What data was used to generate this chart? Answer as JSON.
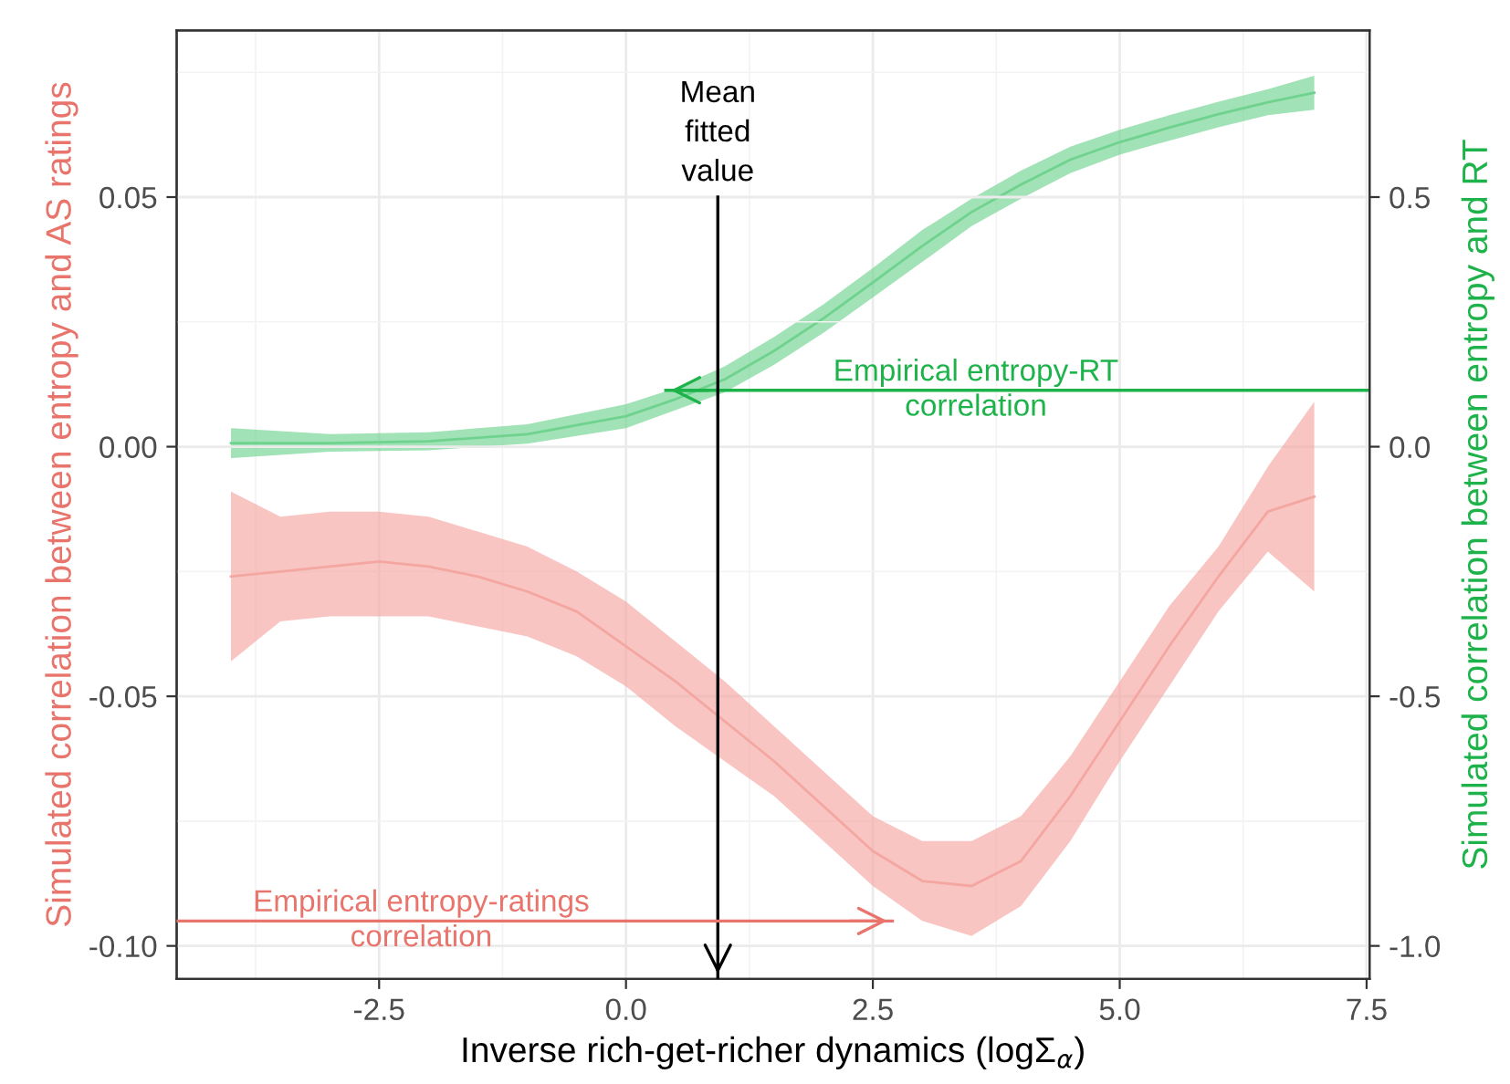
{
  "chart_data": {
    "type": "line",
    "xlabel": "Inverse rich-get-richer dynamics (logΣ$_{α}$)",
    "ylabel": "Simulated correlation between entropy and AS ratings",
    "y2label": "Simulated correlation between entropy and RT",
    "xlim": [
      -4.55,
      7.53
    ],
    "xticks": [
      -2.5,
      {
        "value": 0,
        "label": "0.0"
      },
      2.5,
      {
        "value": 5,
        "label": "5.0"
      },
      7.5
    ],
    "ylim": [
      -0.1066,
      0.0834
    ],
    "yticks": [
      {
        "value": -0.1,
        "label": "-0.10"
      },
      -0.05,
      {
        "value": 0,
        "label": "0.00"
      },
      0.05
    ],
    "y2lim": [
      -1.066,
      0.834
    ],
    "y2ticks": [
      {
        "value": -1,
        "label": "-1.0"
      },
      -0.5,
      {
        "value": 0,
        "label": "0.0"
      },
      0.5
    ],
    "grid": true,
    "legend": false,
    "series": [
      {
        "color": "#f4a6a1",
        "x": [
          -4,
          -3.5,
          -3,
          -2.5,
          -2,
          -1.5,
          -1,
          -0.5,
          0,
          0.5,
          1,
          1.5,
          2,
          2.5,
          3,
          3.5,
          4,
          4.5,
          5,
          5.5,
          6,
          6.5,
          6.97
        ],
        "values": [
          -0.026,
          -0.025,
          -0.024,
          -0.023,
          -0.024,
          -0.026,
          -0.029,
          -0.033,
          -0.04,
          -0.047,
          -0.055,
          -0.063,
          -0.072,
          -0.081,
          -0.087,
          -0.088,
          -0.083,
          -0.07,
          -0.055,
          -0.04,
          -0.026,
          -0.013,
          -0.01
        ],
        "upper": [
          -0.009,
          -0.014,
          -0.013,
          -0.013,
          -0.014,
          -0.017,
          -0.02,
          -0.025,
          -0.031,
          -0.039,
          -0.047,
          -0.056,
          -0.065,
          -0.074,
          -0.079,
          -0.079,
          -0.074,
          -0.062,
          -0.047,
          -0.032,
          -0.02,
          -0.004,
          0.009
        ],
        "lower": [
          -0.043,
          -0.035,
          -0.034,
          -0.034,
          -0.034,
          -0.036,
          -0.038,
          -0.042,
          -0.048,
          -0.056,
          -0.063,
          -0.07,
          -0.079,
          -0.088,
          -0.095,
          -0.098,
          -0.092,
          -0.079,
          -0.063,
          -0.048,
          -0.033,
          -0.021,
          -0.029
        ]
      },
      {
        "color": "#6fd38f",
        "axis": "y2",
        "x": [
          -4,
          -3,
          -2,
          -1,
          0,
          0.5,
          1,
          1.5,
          2,
          2.5,
          3,
          3.5,
          4,
          4.5,
          5,
          5.5,
          6,
          6.5,
          6.97
        ],
        "values": [
          0.007,
          0.007,
          0.011,
          0.025,
          0.061,
          0.095,
          0.135,
          0.192,
          0.257,
          0.329,
          0.402,
          0.47,
          0.525,
          0.575,
          0.61,
          0.639,
          0.666,
          0.69,
          0.709
        ],
        "upper": [
          0.037,
          0.025,
          0.029,
          0.045,
          0.085,
          0.117,
          0.161,
          0.22,
          0.285,
          0.358,
          0.434,
          0.497,
          0.553,
          0.601,
          0.635,
          0.664,
          0.691,
          0.716,
          0.743
        ],
        "lower": [
          -0.023,
          -0.01,
          -0.007,
          0.006,
          0.037,
          0.073,
          0.109,
          0.164,
          0.228,
          0.299,
          0.37,
          0.442,
          0.497,
          0.548,
          0.585,
          0.613,
          0.64,
          0.664,
          0.675
        ]
      }
    ],
    "ref_lines": [
      {
        "axis": "x",
        "value": 0.93,
        "label": "Mean\nfitted\nvalue",
        "color": "#000000"
      },
      {
        "axis": "y2",
        "value": 0.113,
        "label": "Empirical entropy-RT\ncorrelation",
        "color": "#1db34a"
      },
      {
        "axis": "y",
        "value": -0.095,
        "label": "Empirical entropy-ratings\ncorrelation",
        "color": "#e8746c"
      }
    ]
  }
}
